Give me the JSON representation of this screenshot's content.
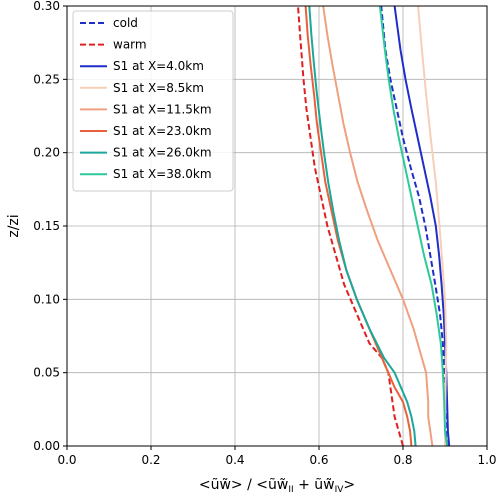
{
  "chart_data": {
    "type": "line",
    "xlabel": "<ũw̃> / <ũw̃_II + ũw̃_IV>",
    "ylabel": "z/zi",
    "xlim": [
      0.0,
      1.0
    ],
    "ylim": [
      0.0,
      0.3
    ],
    "xticks": [
      "0.0",
      "0.2",
      "0.4",
      "0.6",
      "0.8",
      "1.0"
    ],
    "yticks": [
      "0.00",
      "0.05",
      "0.10",
      "0.15",
      "0.20",
      "0.25",
      "0.30"
    ],
    "grid": true,
    "legend_position": "top-left",
    "series": [
      {
        "name": "cold",
        "color": "#1f2ec9",
        "dash": "dashed",
        "points": [
          [
            0.905,
            0.0
          ],
          [
            0.902,
            0.01
          ],
          [
            0.9,
            0.03
          ],
          [
            0.898,
            0.05
          ],
          [
            0.895,
            0.07
          ],
          [
            0.888,
            0.09
          ],
          [
            0.877,
            0.11
          ],
          [
            0.865,
            0.13
          ],
          [
            0.853,
            0.15
          ],
          [
            0.838,
            0.17
          ],
          [
            0.818,
            0.19
          ],
          [
            0.8,
            0.21
          ],
          [
            0.785,
            0.23
          ],
          [
            0.77,
            0.25
          ],
          [
            0.758,
            0.27
          ],
          [
            0.748,
            0.3
          ]
        ]
      },
      {
        "name": "warm",
        "color": "#e02020",
        "dash": "dashed",
        "points": [
          [
            0.8,
            0.0
          ],
          [
            0.79,
            0.01
          ],
          [
            0.78,
            0.02
          ],
          [
            0.77,
            0.04
          ],
          [
            0.765,
            0.05
          ],
          [
            0.75,
            0.06
          ],
          [
            0.72,
            0.07
          ],
          [
            0.69,
            0.09
          ],
          [
            0.66,
            0.11
          ],
          [
            0.64,
            0.13
          ],
          [
            0.62,
            0.15
          ],
          [
            0.605,
            0.17
          ],
          [
            0.59,
            0.19
          ],
          [
            0.58,
            0.21
          ],
          [
            0.57,
            0.23
          ],
          [
            0.563,
            0.25
          ],
          [
            0.555,
            0.28
          ],
          [
            0.55,
            0.3
          ]
        ]
      },
      {
        "name": "S1 at X=4.0km",
        "color": "#1f2ec9",
        "dash": "solid",
        "points": [
          [
            0.91,
            0.0
          ],
          [
            0.907,
            0.01
          ],
          [
            0.905,
            0.03
          ],
          [
            0.903,
            0.05
          ],
          [
            0.9,
            0.07
          ],
          [
            0.897,
            0.09
          ],
          [
            0.892,
            0.11
          ],
          [
            0.886,
            0.13
          ],
          [
            0.878,
            0.15
          ],
          [
            0.865,
            0.17
          ],
          [
            0.85,
            0.19
          ],
          [
            0.835,
            0.21
          ],
          [
            0.82,
            0.23
          ],
          [
            0.806,
            0.25
          ],
          [
            0.794,
            0.27
          ],
          [
            0.78,
            0.3
          ]
        ]
      },
      {
        "name": "S1 at X=8.5km",
        "color": "#f7cfb8",
        "dash": "solid",
        "points": [
          [
            0.9,
            0.0
          ],
          [
            0.9,
            0.02
          ],
          [
            0.902,
            0.05
          ],
          [
            0.903,
            0.07
          ],
          [
            0.9,
            0.1
          ],
          [
            0.895,
            0.12
          ],
          [
            0.887,
            0.15
          ],
          [
            0.878,
            0.18
          ],
          [
            0.866,
            0.21
          ],
          [
            0.855,
            0.24
          ],
          [
            0.845,
            0.27
          ],
          [
            0.836,
            0.3
          ]
        ]
      },
      {
        "name": "S1 at X=11.5km",
        "color": "#f0a080",
        "dash": "solid",
        "points": [
          [
            0.87,
            0.0
          ],
          [
            0.865,
            0.01
          ],
          [
            0.86,
            0.02
          ],
          [
            0.86,
            0.03
          ],
          [
            0.855,
            0.05
          ],
          [
            0.845,
            0.06
          ],
          [
            0.825,
            0.08
          ],
          [
            0.8,
            0.1
          ],
          [
            0.77,
            0.12
          ],
          [
            0.74,
            0.14
          ],
          [
            0.715,
            0.16
          ],
          [
            0.692,
            0.18
          ],
          [
            0.674,
            0.2
          ],
          [
            0.658,
            0.22
          ],
          [
            0.645,
            0.24
          ],
          [
            0.632,
            0.26
          ],
          [
            0.62,
            0.28
          ],
          [
            0.61,
            0.3
          ]
        ]
      },
      {
        "name": "S1 at X=23.0km",
        "color": "#e9603c",
        "dash": "solid",
        "points": [
          [
            0.82,
            0.0
          ],
          [
            0.817,
            0.01
          ],
          [
            0.81,
            0.02
          ],
          [
            0.8,
            0.03
          ],
          [
            0.78,
            0.04
          ],
          [
            0.75,
            0.06
          ],
          [
            0.72,
            0.08
          ],
          [
            0.69,
            0.1
          ],
          [
            0.665,
            0.12
          ],
          [
            0.645,
            0.14
          ],
          [
            0.63,
            0.16
          ],
          [
            0.615,
            0.18
          ],
          [
            0.605,
            0.2
          ],
          [
            0.595,
            0.22
          ],
          [
            0.588,
            0.24
          ],
          [
            0.58,
            0.26
          ],
          [
            0.573,
            0.28
          ],
          [
            0.568,
            0.3
          ]
        ]
      },
      {
        "name": "S1 at X=26.0km",
        "color": "#1aa89a",
        "dash": "solid",
        "points": [
          [
            0.83,
            0.0
          ],
          [
            0.827,
            0.01
          ],
          [
            0.82,
            0.02
          ],
          [
            0.81,
            0.03
          ],
          [
            0.795,
            0.04
          ],
          [
            0.78,
            0.05
          ],
          [
            0.755,
            0.06
          ],
          [
            0.72,
            0.08
          ],
          [
            0.69,
            0.1
          ],
          [
            0.665,
            0.12
          ],
          [
            0.648,
            0.14
          ],
          [
            0.634,
            0.16
          ],
          [
            0.622,
            0.18
          ],
          [
            0.612,
            0.2
          ],
          [
            0.603,
            0.22
          ],
          [
            0.595,
            0.24
          ],
          [
            0.588,
            0.26
          ],
          [
            0.582,
            0.28
          ],
          [
            0.577,
            0.3
          ]
        ]
      },
      {
        "name": "S1 at X=38.0km",
        "color": "#2ec99a",
        "dash": "solid",
        "points": [
          [
            0.905,
            0.0
          ],
          [
            0.9,
            0.01
          ],
          [
            0.898,
            0.03
          ],
          [
            0.895,
            0.05
          ],
          [
            0.89,
            0.07
          ],
          [
            0.88,
            0.09
          ],
          [
            0.868,
            0.11
          ],
          [
            0.85,
            0.13
          ],
          [
            0.835,
            0.15
          ],
          [
            0.82,
            0.17
          ],
          [
            0.805,
            0.19
          ],
          [
            0.79,
            0.21
          ],
          [
            0.777,
            0.23
          ],
          [
            0.766,
            0.25
          ],
          [
            0.757,
            0.27
          ],
          [
            0.745,
            0.3
          ]
        ]
      }
    ]
  }
}
